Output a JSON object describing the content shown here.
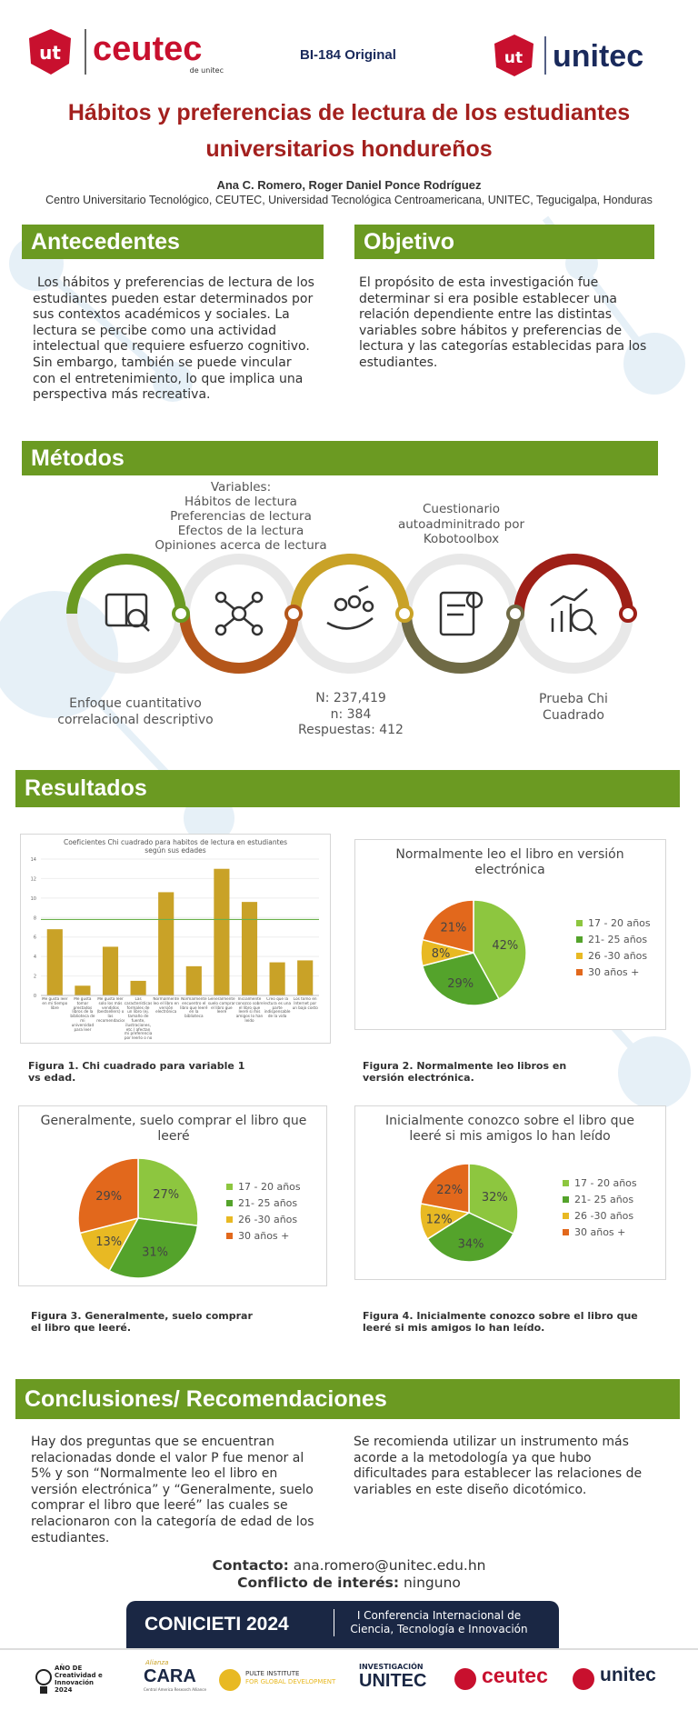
{
  "header": {
    "left_icon": "ut",
    "left_logo": "ceutec",
    "left_logo_sub": "de unitec",
    "code": "BI-184 Original",
    "right_icon": "ut",
    "right_logo": "unitec"
  },
  "title": "Hábitos y preferencias de lectura de los estudiantes universitarios hondureños",
  "authors": "Ana C. Romero, Roger Daniel Ponce Rodríguez",
  "affiliation": "Centro Universitario Tecnológico, CEUTEC, Universidad Tecnológica Centroamericana, UNITEC, Tegucigalpa, Honduras",
  "background": {
    "heading": "Antecedentes",
    "text": "Los hábitos y preferencias de lectura de los estudiantes pueden estar determinados por sus contextos académicos y sociales. La lectura se percibe como una actividad intelectual que requiere esfuerzo cognitivo. Sin embargo, también se puede vincular con el entretenimiento, lo que implica una perspectiva más recreativa."
  },
  "objective": {
    "heading": "Objetivo",
    "text": "El propósito de esta investigación fue determinar si era posible establecer una relación dependiente entre las distintas variables sobre hábitos y preferencias de lectura y las categorías establecidas para los estudiantes."
  },
  "methods": {
    "heading": "Métodos",
    "variables_title": "Variables:",
    "variables": [
      "Hábitos de lectura",
      "Preferencias de lectura",
      "Efectos de la lectura",
      "Opiniones acerca de lectura"
    ],
    "questionnaire": "Cuestionario autoadminitrado por Kobotoolbox",
    "approach": "Enfoque cuantitativo correlacional descriptivo",
    "sample": [
      "N: 237,419",
      "n: 384",
      "Respuestas: 412"
    ],
    "test": "Prueba Chi Cuadrado"
  },
  "results": {
    "heading": "Resultados",
    "captions": [
      "Figura 1. Chi cuadrado para variable 1 vs edad.",
      "Figura 2. Normalmente leo libros en versión electrónica.",
      "Figura 3. Generalmente, suelo comprar el libro que leeré.",
      "Figura 4. Inicialmente conozco sobre el libro que leeré si mis amigos lo han leído."
    ]
  },
  "chart_data": [
    {
      "type": "bar",
      "title": "Coeficientes Chi cuadrado para habitos de lectura en estudiantes según sus edades",
      "categories": [
        "Me gusta leer en mi tiempo libre",
        "Me gusta tomar prestados libros de la biblioteca de mi universidad para leer",
        "Me gusta leer solo los más vendidos (bestsellers) o las recomendaciones",
        "Las características formales de un libro (ej. tamaño de fuente, ilustraciones, etc.) afectan mi preferencia por leerlo o no",
        "Normalmente leo el libro en versión electrónica",
        "Normalmente encuentro el libro que leeré en la biblioteca",
        "Generalmente, suelo comprar el libro que leeré",
        "Inicialmente conozco sobre el libro que leeré si mis amigos lo han leído",
        "Creo que la lectura es una parte indispensable de la vida",
        "Los tomo en Internet por un bajo costo"
      ],
      "values": [
        6.8,
        1,
        5,
        1.5,
        10.6,
        3,
        13,
        9.6,
        3.4,
        3.6
      ],
      "color": "#c9a227",
      "reference_line": 7.8,
      "reference_color": "#6ab04c",
      "ylim": [
        0,
        14
      ],
      "yticks": [
        0,
        2,
        4,
        6,
        8,
        10,
        12,
        14
      ],
      "grid": true
    },
    {
      "type": "pie",
      "title": "Normalmente leo el libro en versión electrónica",
      "categories": [
        "17 - 20 años",
        "21- 25 años",
        "26 -30 años",
        "30 años +"
      ],
      "values": [
        42,
        29,
        8,
        21
      ],
      "value_labels": [
        "42%",
        "29%",
        "8%",
        "21%"
      ],
      "colors": [
        "#8dc63f",
        "#54a32b",
        "#e8b923",
        "#e2681c"
      ]
    },
    {
      "type": "pie",
      "title": "Generalmente, suelo comprar el libro que leeré",
      "categories": [
        "17 - 20 años",
        "21- 25 años",
        "26 -30 años",
        "30 años +"
      ],
      "values": [
        27,
        31,
        13,
        29
      ],
      "value_labels": [
        "27%",
        "31%",
        "13%",
        "29%"
      ],
      "colors": [
        "#8dc63f",
        "#54a32b",
        "#e8b923",
        "#e2681c"
      ]
    },
    {
      "type": "pie",
      "title": "Inicialmente conozco sobre el libro que leeré si mis amigos lo han leído",
      "categories": [
        "17 - 20 años",
        "21- 25 años",
        "26 -30 años",
        "30 años +"
      ],
      "values": [
        32,
        34,
        12,
        22
      ],
      "value_labels": [
        "32%",
        "34%",
        "12%",
        "22%"
      ],
      "colors": [
        "#8dc63f",
        "#54a32b",
        "#e8b923",
        "#e2681c"
      ]
    }
  ],
  "conclusions": {
    "heading": "Conclusiones/ Recomendaciones",
    "left": "Hay dos preguntas que se encuentran relacionadas donde el valor P fue menor al 5% y son “Normalmente leo el libro en versión electrónica” y “Generalmente, suelo comprar el libro que leeré” las cuales se relacionaron con la categoría de edad de los estudiantes.",
    "right": "Se recomienda utilizar un instrumento más acorde a la metodología ya que hubo dificultades para establecer las relaciones de variables en este diseño dicotómico."
  },
  "contact": {
    "label": "Contacto:",
    "email": "ana.romero@unitec.edu.hn",
    "conflict_label": "Conflicto de interés:",
    "conflict": "ninguno"
  },
  "footer": {
    "event": "CONICIETI 2024",
    "event_name": "I Conferencia Internacional de Ciencia, Tecnología e Innovación",
    "logos": [
      "AÑO DE",
      "Creatividad e Innovación",
      "2024",
      "Alianza",
      "CARA",
      "Central America Research Alliance",
      "PULTE INSTITUTE",
      "FOR GLOBAL DEVELOPMENT",
      "INVESTIGACIÓN",
      "UNITEC",
      "ceutec",
      "unitec"
    ]
  }
}
